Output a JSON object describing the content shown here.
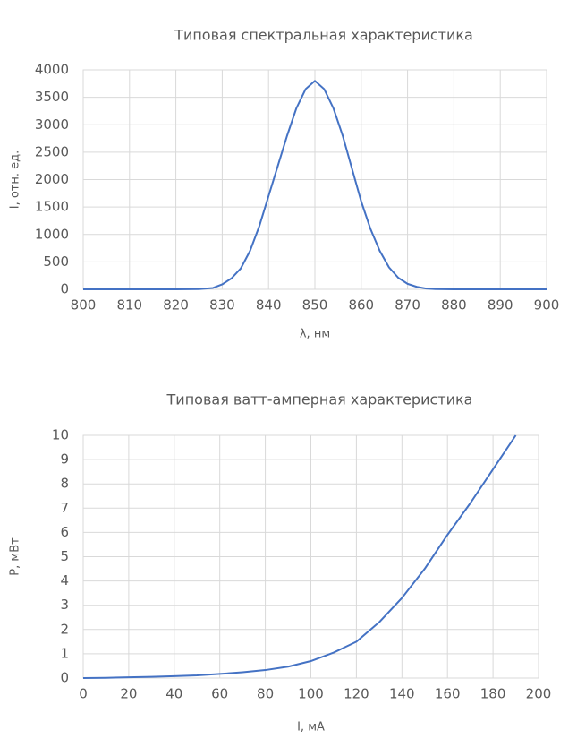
{
  "chart_data": [
    {
      "type": "line",
      "title": "Типовая спектральная характеристика",
      "x_label": "λ, нм",
      "y_label": "I, отн. ед.",
      "x": [
        800,
        810,
        820,
        825,
        828,
        830,
        832,
        834,
        836,
        838,
        840,
        842,
        844,
        846,
        848,
        850,
        852,
        854,
        856,
        858,
        860,
        862,
        864,
        866,
        868,
        870,
        872,
        874,
        876,
        880,
        890,
        900
      ],
      "series": [
        {
          "color": "#4472c4",
          "values": [
            0,
            0,
            0,
            5,
            25,
            90,
            200,
            380,
            700,
            1150,
            1700,
            2250,
            2800,
            3300,
            3650,
            3800,
            3650,
            3300,
            2800,
            2200,
            1600,
            1100,
            700,
            400,
            210,
            100,
            45,
            15,
            5,
            0,
            0,
            0
          ]
        }
      ],
      "xlim": [
        800,
        900
      ],
      "xticks": [
        800,
        810,
        820,
        830,
        840,
        850,
        860,
        870,
        880,
        890,
        900
      ],
      "ylim": [
        0,
        4000
      ],
      "yticks": [
        0,
        500,
        1000,
        1500,
        2000,
        2500,
        3000,
        3500,
        4000
      ],
      "grid": true
    },
    {
      "type": "line",
      "title": "Типовая ватт-амперная характеристика",
      "x_label": "I, мА",
      "y_label": "P, мВт",
      "x": [
        0,
        10,
        20,
        30,
        40,
        50,
        60,
        70,
        80,
        90,
        100,
        110,
        120,
        130,
        140,
        150,
        160,
        170,
        180,
        190
      ],
      "series": [
        {
          "color": "#4472c4",
          "values": [
            0,
            0.01,
            0.03,
            0.05,
            0.08,
            0.11,
            0.17,
            0.24,
            0.33,
            0.47,
            0.7,
            1.05,
            1.5,
            2.3,
            3.3,
            4.5,
            5.9,
            7.2,
            8.6,
            10
          ]
        }
      ],
      "xlim": [
        0,
        200
      ],
      "xticks": [
        0,
        20,
        40,
        60,
        80,
        100,
        120,
        140,
        160,
        180,
        200
      ],
      "ylim": [
        0,
        10
      ],
      "yticks": [
        0,
        1,
        2,
        3,
        4,
        5,
        6,
        7,
        8,
        9,
        10
      ],
      "grid": true
    }
  ]
}
